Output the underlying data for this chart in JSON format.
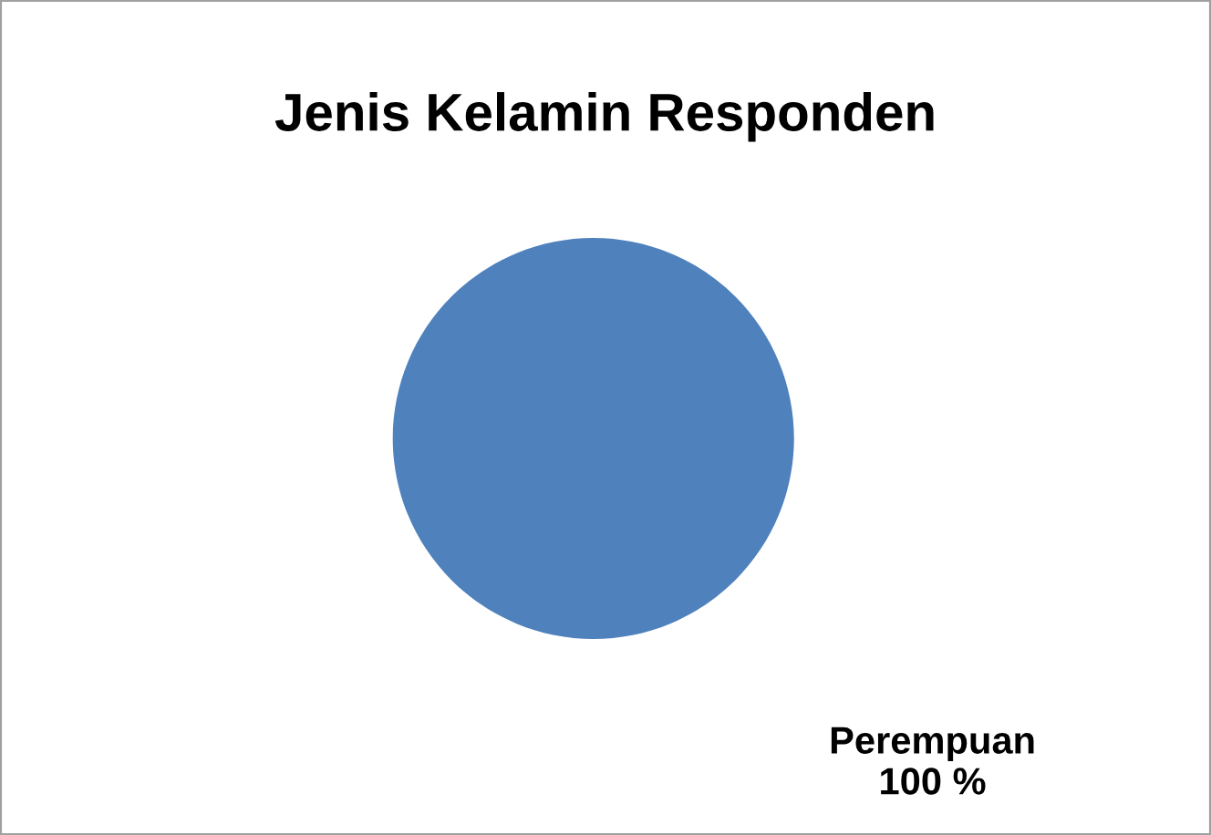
{
  "chart_data": {
    "type": "pie",
    "title": "Jenis Kelamin Responden",
    "categories": [
      "Perempuan"
    ],
    "values": [
      100
    ],
    "colors": [
      "#4f81bd"
    ],
    "value_labels": [
      "100 %"
    ]
  }
}
